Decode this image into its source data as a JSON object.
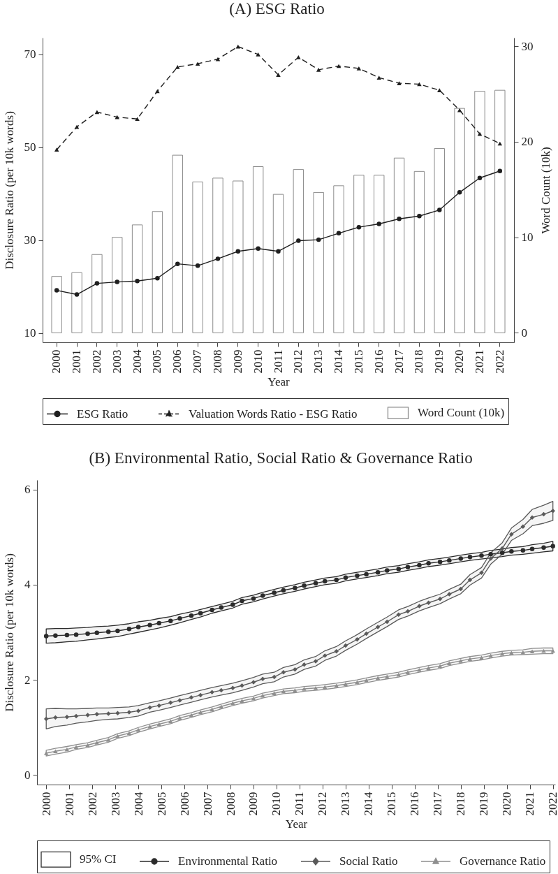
{
  "chart_data": [
    {
      "type": "bar",
      "title": "(A) ESG Ratio",
      "xlabel": "Year",
      "ylabel": "Disclosure Ratio (per 10k words)",
      "y2label": "Word Count (10k)",
      "categories": [
        "2000",
        "2001",
        "2002",
        "2003",
        "2004",
        "2005",
        "2006",
        "2007",
        "2008",
        "2009",
        "2010",
        "2011",
        "2012",
        "2013",
        "2014",
        "2015",
        "2016",
        "2017",
        "2018",
        "2019",
        "2020",
        "2021",
        "2022"
      ],
      "series": [
        {
          "name": "ESG Ratio",
          "type": "line",
          "color": "#1f1f1f",
          "marker": "circle",
          "line_style": "solid",
          "values": [
            19.2,
            18.3,
            20.7,
            21.0,
            21.2,
            21.8,
            24.9,
            24.5,
            26.0,
            27.6,
            28.2,
            27.6,
            29.9,
            30.1,
            31.5,
            32.8,
            33.5,
            34.6,
            35.2,
            36.5,
            40.3,
            43.4,
            44.9
          ]
        },
        {
          "name": "Valuation Words Ratio - ESG Ratio",
          "type": "line",
          "color": "#1f1f1f",
          "marker": "triangle",
          "line_style": "dashed",
          "values": [
            49.5,
            54.4,
            57.6,
            56.5,
            56.1,
            62.1,
            67.3,
            68.0,
            69.0,
            71.7,
            70.0,
            65.6,
            69.4,
            66.7,
            67.5,
            67.0,
            65.0,
            63.8,
            63.6,
            62.3,
            58.0,
            52.9,
            50.8
          ]
        },
        {
          "name": "Word Count (10k)",
          "type": "bar",
          "axis": "y2",
          "color": "#8c8c8c",
          "values": [
            5.9,
            6.3,
            8.2,
            10.0,
            11.3,
            12.7,
            18.6,
            15.8,
            16.2,
            15.9,
            17.4,
            14.5,
            17.1,
            14.7,
            15.4,
            16.5,
            16.5,
            18.3,
            16.9,
            19.3,
            23.5,
            25.3,
            25.4
          ]
        }
      ],
      "ylim": [
        8,
        73.6
      ],
      "yticks": [
        10,
        30,
        50,
        70
      ],
      "y2lim": [
        -1,
        30.9
      ],
      "y2ticks": [
        0,
        10,
        20,
        30
      ],
      "legend": "bottom"
    },
    {
      "type": "line",
      "title": "(B) Environmental Ratio, Social Ratio & Governance Ratio",
      "xlabel": "Year",
      "ylabel": "Disclosure Ratio (per 10k words)",
      "x": [
        2000,
        2000.4,
        2000.9,
        2001.3,
        2001.8,
        2002.2,
        2002.7,
        2003.1,
        2003.6,
        2004.0,
        2004.5,
        2004.9,
        2005.4,
        2005.8,
        2006.3,
        2006.7,
        2007.2,
        2007.6,
        2008.1,
        2008.5,
        2009.0,
        2009.4,
        2009.9,
        2010.3,
        2010.8,
        2011.2,
        2011.7,
        2012.1,
        2012.6,
        2013.0,
        2013.5,
        2013.9,
        2014.4,
        2014.8,
        2015.3,
        2015.7,
        2016.2,
        2016.6,
        2017.1,
        2017.5,
        2018.0,
        2018.4,
        2018.9,
        2019.3,
        2019.8,
        2020.2,
        2020.7,
        2021.1,
        2021.6,
        2022
      ],
      "series": [
        {
          "name": "Environmental Ratio",
          "color": "#2b2b2b",
          "marker": "circle",
          "values": [
            2.92,
            2.93,
            2.94,
            2.95,
            2.97,
            2.99,
            3.01,
            3.03,
            3.07,
            3.11,
            3.15,
            3.19,
            3.24,
            3.29,
            3.35,
            3.4,
            3.47,
            3.52,
            3.58,
            3.66,
            3.71,
            3.77,
            3.83,
            3.88,
            3.93,
            3.98,
            4.03,
            4.07,
            4.1,
            4.15,
            4.19,
            4.22,
            4.26,
            4.3,
            4.33,
            4.37,
            4.41,
            4.45,
            4.48,
            4.51,
            4.55,
            4.58,
            4.61,
            4.64,
            4.67,
            4.7,
            4.72,
            4.75,
            4.78,
            4.81
          ],
          "lower": [
            2.77,
            2.78,
            2.8,
            2.81,
            2.84,
            2.86,
            2.89,
            2.91,
            2.96,
            3.0,
            3.05,
            3.09,
            3.15,
            3.2,
            3.27,
            3.32,
            3.4,
            3.45,
            3.51,
            3.59,
            3.64,
            3.7,
            3.76,
            3.81,
            3.86,
            3.91,
            3.96,
            4.0,
            4.03,
            4.08,
            4.12,
            4.15,
            4.19,
            4.23,
            4.26,
            4.3,
            4.34,
            4.38,
            4.41,
            4.44,
            4.48,
            4.51,
            4.54,
            4.56,
            4.59,
            4.62,
            4.64,
            4.66,
            4.69,
            4.71
          ],
          "upper": [
            3.07,
            3.08,
            3.08,
            3.09,
            3.1,
            3.12,
            3.13,
            3.15,
            3.18,
            3.22,
            3.25,
            3.29,
            3.33,
            3.38,
            3.43,
            3.48,
            3.54,
            3.59,
            3.65,
            3.73,
            3.78,
            3.84,
            3.9,
            3.95,
            4.0,
            4.05,
            4.1,
            4.14,
            4.17,
            4.22,
            4.26,
            4.29,
            4.33,
            4.37,
            4.4,
            4.44,
            4.48,
            4.52,
            4.55,
            4.58,
            4.62,
            4.65,
            4.68,
            4.72,
            4.75,
            4.78,
            4.8,
            4.84,
            4.87,
            4.91
          ]
        },
        {
          "name": "Social Ratio",
          "color": "#5a5a5a",
          "marker": "diamond",
          "values": [
            1.18,
            1.21,
            1.22,
            1.24,
            1.26,
            1.28,
            1.29,
            1.3,
            1.32,
            1.35,
            1.42,
            1.46,
            1.52,
            1.57,
            1.63,
            1.68,
            1.74,
            1.78,
            1.83,
            1.88,
            1.95,
            2.02,
            2.06,
            2.16,
            2.22,
            2.32,
            2.39,
            2.51,
            2.6,
            2.72,
            2.85,
            2.97,
            3.11,
            3.22,
            3.37,
            3.44,
            3.55,
            3.62,
            3.7,
            3.8,
            3.91,
            4.1,
            4.25,
            4.55,
            4.76,
            5.06,
            5.22,
            5.41,
            5.48,
            5.55
          ],
          "lower": [
            0.97,
            1.02,
            1.05,
            1.09,
            1.12,
            1.15,
            1.17,
            1.18,
            1.21,
            1.24,
            1.32,
            1.36,
            1.42,
            1.47,
            1.53,
            1.58,
            1.64,
            1.68,
            1.73,
            1.78,
            1.85,
            1.92,
            1.96,
            2.06,
            2.12,
            2.22,
            2.29,
            2.41,
            2.5,
            2.62,
            2.75,
            2.87,
            3.01,
            3.12,
            3.27,
            3.34,
            3.45,
            3.52,
            3.6,
            3.7,
            3.81,
            3.99,
            4.14,
            4.43,
            4.64,
            4.93,
            5.07,
            5.24,
            5.29,
            5.35
          ],
          "upper": [
            1.39,
            1.4,
            1.39,
            1.39,
            1.4,
            1.41,
            1.41,
            1.42,
            1.43,
            1.46,
            1.52,
            1.56,
            1.62,
            1.67,
            1.73,
            1.78,
            1.84,
            1.88,
            1.93,
            1.98,
            2.05,
            2.12,
            2.16,
            2.26,
            2.32,
            2.42,
            2.49,
            2.61,
            2.7,
            2.82,
            2.95,
            3.07,
            3.21,
            3.32,
            3.47,
            3.54,
            3.65,
            3.72,
            3.8,
            3.9,
            4.01,
            4.21,
            4.36,
            4.67,
            4.88,
            5.19,
            5.37,
            5.58,
            5.67,
            5.75
          ]
        },
        {
          "name": "Governance Ratio",
          "color": "#8f8f8f",
          "marker": "triangle",
          "values": [
            0.46,
            0.5,
            0.54,
            0.59,
            0.63,
            0.68,
            0.74,
            0.82,
            0.88,
            0.95,
            1.02,
            1.07,
            1.13,
            1.2,
            1.26,
            1.32,
            1.38,
            1.44,
            1.51,
            1.56,
            1.61,
            1.67,
            1.72,
            1.76,
            1.78,
            1.81,
            1.83,
            1.85,
            1.88,
            1.91,
            1.95,
            1.99,
            2.04,
            2.07,
            2.11,
            2.16,
            2.21,
            2.25,
            2.29,
            2.35,
            2.4,
            2.44,
            2.47,
            2.51,
            2.55,
            2.57,
            2.58,
            2.6,
            2.61,
            2.61
          ],
          "lower": [
            0.4,
            0.44,
            0.48,
            0.54,
            0.58,
            0.63,
            0.69,
            0.77,
            0.83,
            0.9,
            0.97,
            1.02,
            1.08,
            1.15,
            1.21,
            1.27,
            1.33,
            1.39,
            1.46,
            1.51,
            1.56,
            1.62,
            1.67,
            1.71,
            1.73,
            1.76,
            1.78,
            1.8,
            1.83,
            1.86,
            1.9,
            1.94,
            1.99,
            2.02,
            2.06,
            2.11,
            2.16,
            2.2,
            2.24,
            2.3,
            2.35,
            2.39,
            2.42,
            2.46,
            2.5,
            2.52,
            2.53,
            2.54,
            2.55,
            2.55
          ],
          "upper": [
            0.52,
            0.56,
            0.6,
            0.64,
            0.68,
            0.73,
            0.79,
            0.87,
            0.93,
            1.0,
            1.07,
            1.12,
            1.18,
            1.25,
            1.31,
            1.37,
            1.43,
            1.49,
            1.56,
            1.61,
            1.66,
            1.72,
            1.77,
            1.81,
            1.83,
            1.86,
            1.88,
            1.9,
            1.93,
            1.96,
            2.0,
            2.04,
            2.09,
            2.12,
            2.16,
            2.21,
            2.26,
            2.3,
            2.34,
            2.4,
            2.45,
            2.49,
            2.52,
            2.56,
            2.6,
            2.62,
            2.63,
            2.66,
            2.67,
            2.67
          ]
        }
      ],
      "xlim": [
        1999.6,
        2022.1
      ],
      "xticks": [
        2000,
        2001,
        2002,
        2003,
        2004,
        2005,
        2006,
        2007,
        2008,
        2009,
        2010,
        2011,
        2012,
        2013,
        2014,
        2015,
        2016,
        2017,
        2018,
        2019,
        2020,
        2021,
        2022
      ],
      "ylim": [
        -0.2,
        6.2
      ],
      "yticks": [
        0,
        2,
        4,
        6
      ],
      "legend": "bottom",
      "annotations": [
        "95% CI"
      ]
    }
  ]
}
